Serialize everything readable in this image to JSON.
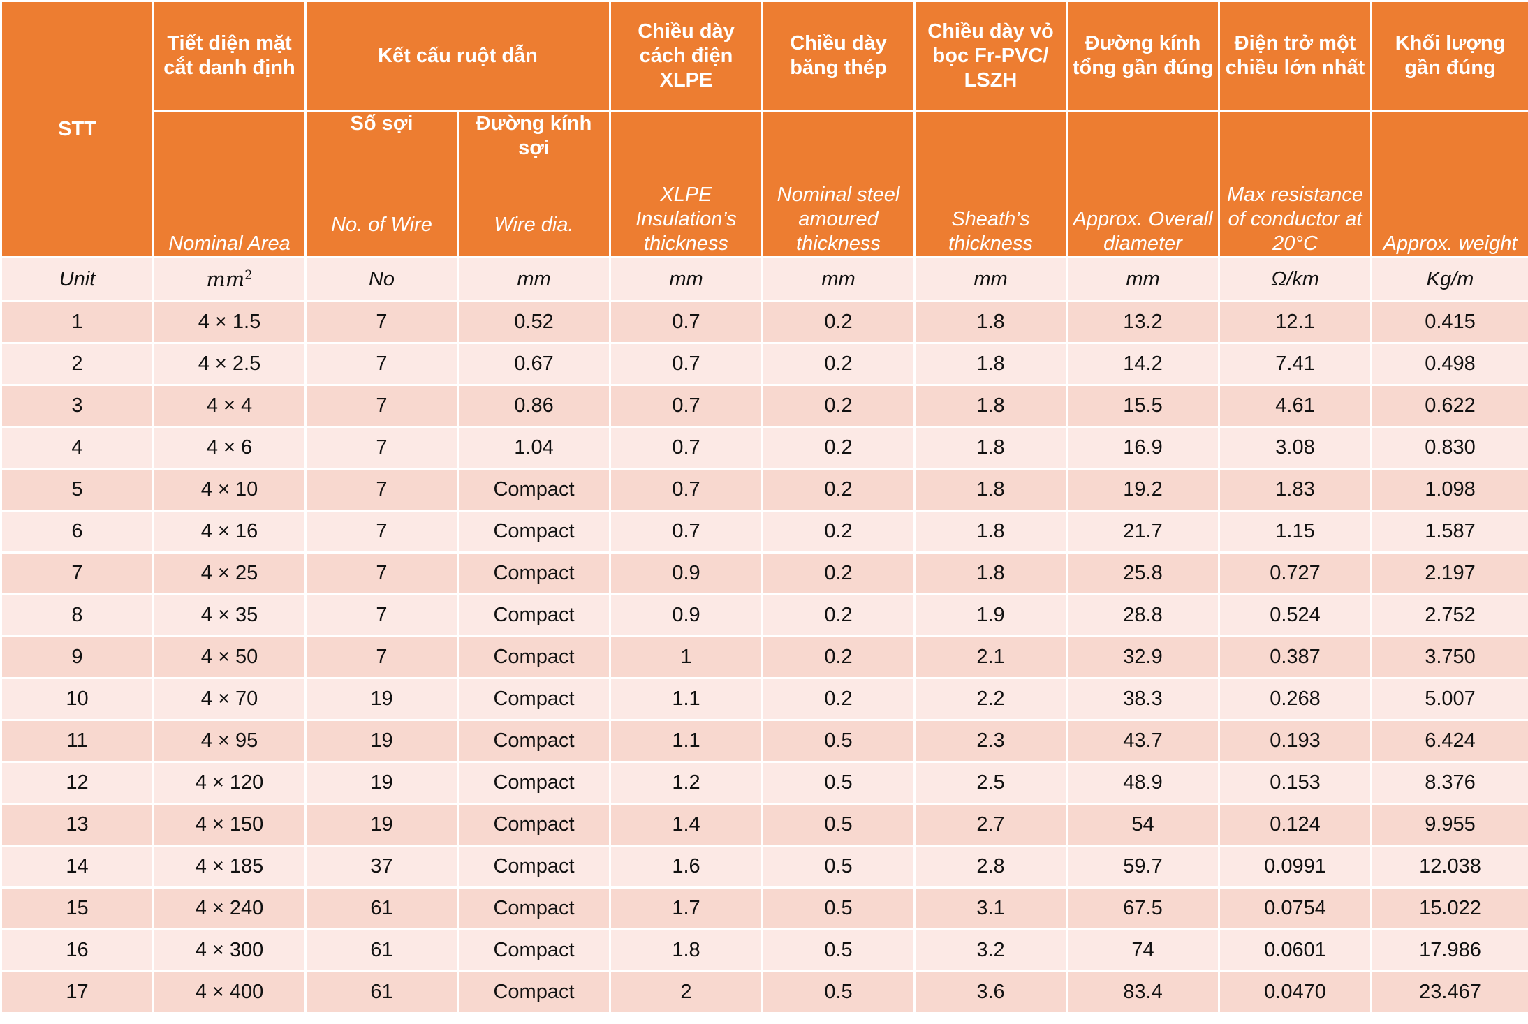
{
  "headers": {
    "stt": "STT",
    "nominal_area_vi": "Tiết diện mặt cắt danh định",
    "conductor_vi": "Kết cấu ruột dẫn",
    "xlpe_vi": "Chiều dày cách điện XLPE",
    "steel_vi": "Chiều dày băng thép",
    "sheath_vi": "Chiều dày vỏ bọc Fr-PVC/ LSZH",
    "overall_vi": "Đường kính tổng gần đúng",
    "resistance_vi": "Điện trở một chiều lớn nhất",
    "weight_vi": "Khối lượng gần đúng",
    "wires_vi": "Số sợi",
    "wire_dia_vi": "Đường kính sợi",
    "nominal_area_en": "Nominal Area",
    "wires_en": "No. of Wire",
    "wire_dia_en": "Wire dia.",
    "xlpe_en": "XLPE Insulation’s thickness",
    "steel_en": "Nominal steel amoured thickness",
    "sheath_en": "Sheath’s thickness",
    "overall_en": "Approx. Overall diameter",
    "resistance_en": "Max resistance of conductor at 20°C",
    "weight_en": "Approx. weight"
  },
  "units": {
    "stt": "Unit",
    "area": "mm",
    "area_exp": "2",
    "wires": "No",
    "wire_dia": "mm",
    "xlpe": "mm",
    "steel": "mm",
    "sheath": "mm",
    "overall": "mm",
    "resistance": "Ω/km",
    "weight": "Kg/m"
  },
  "rows": [
    [
      "1",
      "4 × 1.5",
      "7",
      "0.52",
      "0.7",
      "0.2",
      "1.8",
      "13.2",
      "12.1",
      "0.415"
    ],
    [
      "2",
      "4 × 2.5",
      "7",
      "0.67",
      "0.7",
      "0.2",
      "1.8",
      "14.2",
      "7.41",
      "0.498"
    ],
    [
      "3",
      "4 × 4",
      "7",
      "0.86",
      "0.7",
      "0.2",
      "1.8",
      "15.5",
      "4.61",
      "0.622"
    ],
    [
      "4",
      "4 × 6",
      "7",
      "1.04",
      "0.7",
      "0.2",
      "1.8",
      "16.9",
      "3.08",
      "0.830"
    ],
    [
      "5",
      "4 × 10",
      "7",
      "Compact",
      "0.7",
      "0.2",
      "1.8",
      "19.2",
      "1.83",
      "1.098"
    ],
    [
      "6",
      "4 × 16",
      "7",
      "Compact",
      "0.7",
      "0.2",
      "1.8",
      "21.7",
      "1.15",
      "1.587"
    ],
    [
      "7",
      "4 × 25",
      "7",
      "Compact",
      "0.9",
      "0.2",
      "1.8",
      "25.8",
      "0.727",
      "2.197"
    ],
    [
      "8",
      "4 × 35",
      "7",
      "Compact",
      "0.9",
      "0.2",
      "1.9",
      "28.8",
      "0.524",
      "2.752"
    ],
    [
      "9",
      "4 × 50",
      "7",
      "Compact",
      "1",
      "0.2",
      "2.1",
      "32.9",
      "0.387",
      "3.750"
    ],
    [
      "10",
      "4 × 70",
      "19",
      "Compact",
      "1.1",
      "0.2",
      "2.2",
      "38.3",
      "0.268",
      "5.007"
    ],
    [
      "11",
      "4 × 95",
      "19",
      "Compact",
      "1.1",
      "0.5",
      "2.3",
      "43.7",
      "0.193",
      "6.424"
    ],
    [
      "12",
      "4 × 120",
      "19",
      "Compact",
      "1.2",
      "0.5",
      "2.5",
      "48.9",
      "0.153",
      "8.376"
    ],
    [
      "13",
      "4 × 150",
      "19",
      "Compact",
      "1.4",
      "0.5",
      "2.7",
      "54",
      "0.124",
      "9.955"
    ],
    [
      "14",
      "4 × 185",
      "37",
      "Compact",
      "1.6",
      "0.5",
      "2.8",
      "59.7",
      "0.0991",
      "12.038"
    ],
    [
      "15",
      "4 × 240",
      "61",
      "Compact",
      "1.7",
      "0.5",
      "3.1",
      "67.5",
      "0.0754",
      "15.022"
    ],
    [
      "16",
      "4 × 300",
      "61",
      "Compact",
      "1.8",
      "0.5",
      "3.2",
      "74",
      "0.0601",
      "17.986"
    ],
    [
      "17",
      "4 × 400",
      "61",
      "Compact",
      "2",
      "0.5",
      "3.6",
      "83.4",
      "0.0470",
      "23.467"
    ]
  ]
}
